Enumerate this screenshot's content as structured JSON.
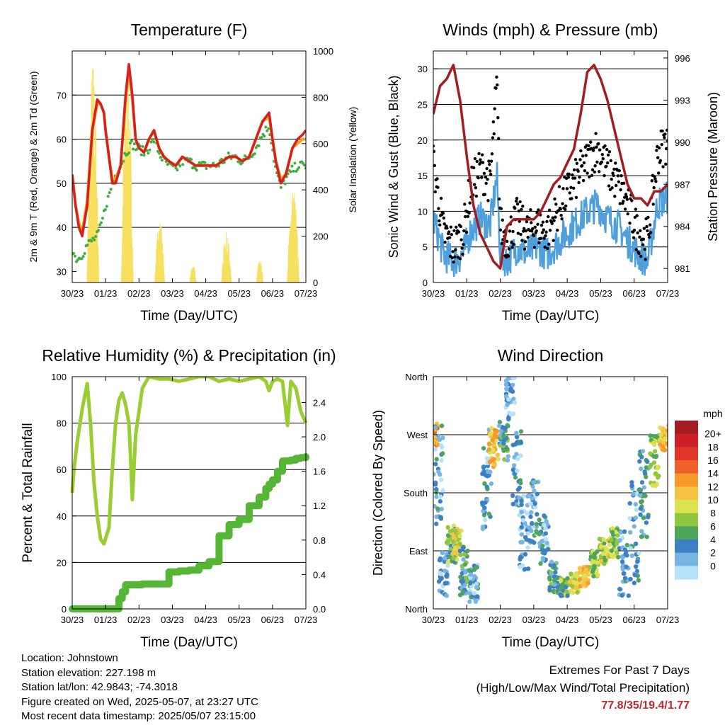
{
  "colors": {
    "red": "#d62020",
    "orange": "#f4a020",
    "green": "#3fae3f",
    "yellow": "#f7e060",
    "blue": "#4f9fdc",
    "black": "#000000",
    "maroon": "#a11d21",
    "rh": "#9acd32",
    "precip": "#55b535",
    "grid": "#000000"
  },
  "x_ticks": [
    "30/23",
    "01/23",
    "02/23",
    "03/23",
    "04/23",
    "05/23",
    "06/23",
    "07/23"
  ],
  "xlabel": "Time (Day/UTC)",
  "chart_data": [
    {
      "type": "line",
      "title": "Temperature (F)",
      "xlabel": "Time (Day/UTC)",
      "ylabel": "2m & 9m T (Red, Orange) & 2m Td (Green)",
      "y2label": "Solar Insolation (Yellow)",
      "ylim": [
        27.5,
        80
      ],
      "y_ticks": [
        30,
        40,
        50,
        60,
        70
      ],
      "y2lim": [
        0,
        1000
      ],
      "y2_ticks": [
        0,
        200,
        400,
        600,
        800,
        1000
      ],
      "x": [
        0,
        0.1,
        0.2,
        0.3,
        0.45,
        0.6,
        0.75,
        0.85,
        0.95,
        1.0,
        1.1,
        1.2,
        1.3,
        1.45,
        1.6,
        1.7,
        1.8,
        1.9,
        2.0,
        2.15,
        2.3,
        2.45,
        2.6,
        2.75,
        2.9,
        3.1,
        3.3,
        3.5,
        3.7,
        3.9,
        4.1,
        4.3,
        4.5,
        4.7,
        4.9,
        5.1,
        5.3,
        5.5,
        5.7,
        5.9,
        6.0,
        6.1,
        6.25,
        6.4,
        6.5,
        6.6,
        6.75,
        6.9,
        7.0
      ],
      "series": [
        {
          "name": "2m T",
          "values": [
            52,
            45,
            40,
            38,
            45,
            62,
            69,
            68,
            66,
            62,
            56,
            50,
            50,
            54,
            70,
            77,
            70,
            60,
            58,
            57,
            60,
            62,
            58,
            56,
            55,
            54,
            56,
            55,
            54,
            54,
            54,
            54,
            55,
            56,
            56,
            55,
            56,
            60,
            64,
            66,
            60,
            55,
            50,
            52,
            55,
            58,
            60,
            61,
            62
          ]
        },
        {
          "name": "9m T",
          "values": [
            52,
            45,
            41,
            39,
            46,
            62,
            68,
            68,
            66,
            62,
            56,
            51,
            51,
            54,
            69,
            76,
            69,
            60,
            58,
            57,
            60,
            62,
            58,
            56,
            55,
            54,
            56,
            55,
            54,
            54,
            54,
            54,
            55,
            56,
            56,
            55,
            56,
            60,
            64,
            65,
            60,
            55,
            51,
            52,
            55,
            58,
            59,
            60,
            60
          ]
        },
        {
          "name": "2m Td",
          "values": [
            35,
            33,
            33,
            34,
            36,
            37,
            38,
            40,
            43,
            45,
            47,
            50,
            52,
            54,
            57,
            58,
            59,
            58,
            58,
            57,
            58,
            60,
            57,
            55,
            54,
            53,
            55,
            55,
            54,
            54,
            54,
            54,
            55,
            56,
            56,
            55,
            56,
            58,
            61,
            63,
            58,
            53,
            49,
            51,
            52,
            53,
            54,
            54,
            54
          ]
        }
      ],
      "solar": [
        {
          "day": 0.62,
          "peak": 980,
          "width": 0.36
        },
        {
          "day": 1.65,
          "peak": 960,
          "width": 0.36
        },
        {
          "day": 2.62,
          "peak": 270,
          "width": 0.3
        },
        {
          "day": 3.62,
          "peak": 80,
          "width": 0.2
        },
        {
          "day": 4.62,
          "peak": 220,
          "width": 0.3
        },
        {
          "day": 5.62,
          "peak": 100,
          "width": 0.2
        },
        {
          "day": 6.62,
          "peak": 420,
          "width": 0.36
        }
      ]
    },
    {
      "type": "scatter",
      "title": "Winds (mph) & Pressure (mb)",
      "xlabel": "Time (Day/UTC)",
      "ylabel": "Sonic Wind & Gust (Blue, Black)",
      "y2label": "Station Pressure (Maroon)",
      "ylim": [
        0,
        32.5
      ],
      "y_ticks": [
        0,
        5,
        10,
        15,
        20,
        25,
        30
      ],
      "y2lim": [
        980,
        996.5
      ],
      "y2_ticks": [
        981,
        984,
        987,
        990,
        993,
        996
      ],
      "wind_x": [
        0,
        0.3,
        0.6,
        0.9,
        1.1,
        1.4,
        1.7,
        1.9,
        2.0,
        2.2,
        2.5,
        2.8,
        3.1,
        3.4,
        3.8,
        4.2,
        4.6,
        4.9,
        5.2,
        5.5,
        5.8,
        6.1,
        6.4,
        6.7,
        7.0
      ],
      "wind": [
        9,
        4,
        3,
        4,
        7,
        9,
        8,
        15,
        4,
        3,
        5,
        4,
        5,
        4,
        6,
        8,
        10,
        11,
        9,
        8,
        6,
        4,
        3,
        11,
        12
      ],
      "gust": [
        17,
        7,
        5,
        7,
        13,
        16,
        14,
        28,
        8,
        6,
        9,
        7,
        8,
        7,
        11,
        14,
        17,
        19,
        16,
        14,
        11,
        7,
        6,
        18,
        20
      ],
      "pressure_x": [
        0,
        0.2,
        0.4,
        0.6,
        0.8,
        1.0,
        1.2,
        1.4,
        1.6,
        1.8,
        2.0,
        2.2,
        2.4,
        2.6,
        2.8,
        3.0,
        3.2,
        3.4,
        3.6,
        3.8,
        4.0,
        4.2,
        4.4,
        4.6,
        4.8,
        5.0,
        5.2,
        5.4,
        5.6,
        5.8,
        6.0,
        6.2,
        6.4,
        6.6,
        6.8,
        7.0
      ],
      "pressure": [
        992,
        994,
        994.5,
        995.5,
        993,
        989,
        985.5,
        983.5,
        982.5,
        981.5,
        981,
        984,
        984.5,
        984.5,
        984.5,
        984.5,
        985,
        986,
        987,
        987.5,
        988.5,
        989.5,
        992,
        995,
        995.5,
        994.5,
        993,
        991,
        989,
        987,
        986,
        986,
        985.5,
        986.5,
        986.5,
        987
      ]
    },
    {
      "type": "line",
      "title": "Relative Humidity (%) & Precipitation (in)",
      "xlabel": "Time (Day/UTC)",
      "ylabel": "Percent & Total Rainfall",
      "ylim": [
        0,
        100
      ],
      "y_ticks": [
        0,
        20,
        40,
        60,
        80,
        100
      ],
      "y2lim": [
        0,
        2.7
      ],
      "y2_ticks": [
        0.0,
        0.4,
        0.8,
        1.2,
        1.6,
        2.0,
        2.4
      ],
      "x": [
        0,
        0.05,
        0.15,
        0.3,
        0.45,
        0.55,
        0.65,
        0.75,
        0.85,
        0.95,
        1.1,
        1.2,
        1.3,
        1.4,
        1.5,
        1.6,
        1.7,
        1.75,
        1.8,
        1.9,
        2.1,
        2.3,
        2.6,
        2.9,
        3.2,
        3.5,
        3.8,
        4.1,
        4.4,
        4.7,
        5.0,
        5.3,
        5.6,
        5.8,
        5.9,
        6.0,
        6.15,
        6.3,
        6.45,
        6.55,
        6.7,
        6.85,
        7.0
      ],
      "series": [
        {
          "name": "RH",
          "values": [
            50,
            60,
            72,
            86,
            97,
            80,
            55,
            40,
            30,
            28,
            35,
            60,
            80,
            90,
            93,
            88,
            80,
            65,
            47,
            75,
            95,
            100,
            99,
            99,
            98,
            99,
            100,
            100,
            98,
            99,
            98,
            99,
            100,
            98,
            94,
            98,
            99,
            98,
            79,
            98,
            95,
            85,
            80
          ]
        },
        {
          "name": "Precip",
          "values": [
            0,
            0,
            0,
            0,
            0,
            0,
            0,
            0,
            0,
            0,
            0,
            0,
            0,
            0.12,
            0.2,
            0.28,
            0.28,
            0.28,
            0.28,
            0.28,
            0.29,
            0.29,
            0.29,
            0.43,
            0.44,
            0.45,
            0.5,
            0.55,
            0.85,
            0.98,
            1.04,
            1.2,
            1.3,
            1.4,
            1.45,
            1.5,
            1.6,
            1.72,
            1.72,
            1.73,
            1.75,
            1.76,
            1.77
          ]
        }
      ]
    },
    {
      "type": "scatter",
      "title": "Wind Direction",
      "xlabel": "Time (Day/UTC)",
      "ylabel": "Direction (Colored By Speed)",
      "y_ticks": [
        "North",
        "East",
        "South",
        "West",
        "North"
      ],
      "ylim": [
        0,
        360
      ],
      "legend_title": "mph",
      "legend_labels": [
        "20+",
        "18",
        "16",
        "14",
        "12",
        "10",
        "8",
        "6",
        "4",
        "2",
        "0"
      ],
      "legend_colors": [
        "#a11d21",
        "#cc2027",
        "#e0362a",
        "#f0612a",
        "#f79a2e",
        "#f6c243",
        "#dde350",
        "#8fc743",
        "#4fa55a",
        "#3d80c4",
        "#79b5e3",
        "#b7e1f7"
      ],
      "clusters": [
        {
          "day": 0.0,
          "dir": 270,
          "spread": 20,
          "speed": 14
        },
        {
          "day": 0.15,
          "dir": 210,
          "spread": 80,
          "speed": 3
        },
        {
          "day": 0.3,
          "dir": 50,
          "spread": 40,
          "speed": 2
        },
        {
          "day": 0.55,
          "dir": 100,
          "spread": 30,
          "speed": 7
        },
        {
          "day": 0.7,
          "dir": 100,
          "spread": 25,
          "speed": 10
        },
        {
          "day": 0.9,
          "dir": 60,
          "spread": 40,
          "speed": 5
        },
        {
          "day": 1.2,
          "dir": 40,
          "spread": 30,
          "speed": 3
        },
        {
          "day": 1.6,
          "dir": 200,
          "spread": 80,
          "speed": 3
        },
        {
          "day": 1.8,
          "dir": 250,
          "spread": 30,
          "speed": 12
        },
        {
          "day": 2.1,
          "dir": 260,
          "spread": 30,
          "speed": 5
        },
        {
          "day": 2.3,
          "dir": 330,
          "spread": 40,
          "speed": 2
        },
        {
          "day": 2.5,
          "dir": 220,
          "spread": 60,
          "speed": 3
        },
        {
          "day": 2.7,
          "dir": 120,
          "spread": 60,
          "speed": 2
        },
        {
          "day": 3.0,
          "dir": 150,
          "spread": 50,
          "speed": 3
        },
        {
          "day": 3.3,
          "dir": 110,
          "spread": 40,
          "speed": 3
        },
        {
          "day": 3.6,
          "dir": 50,
          "spread": 25,
          "speed": 5
        },
        {
          "day": 3.9,
          "dir": 35,
          "spread": 15,
          "speed": 7
        },
        {
          "day": 4.2,
          "dir": 40,
          "spread": 15,
          "speed": 10
        },
        {
          "day": 4.5,
          "dir": 50,
          "spread": 15,
          "speed": 12
        },
        {
          "day": 4.8,
          "dir": 70,
          "spread": 20,
          "speed": 8
        },
        {
          "day": 5.1,
          "dir": 90,
          "spread": 20,
          "speed": 9
        },
        {
          "day": 5.4,
          "dir": 100,
          "spread": 25,
          "speed": 8
        },
        {
          "day": 5.7,
          "dir": 70,
          "spread": 50,
          "speed": 3
        },
        {
          "day": 6.0,
          "dir": 120,
          "spread": 80,
          "speed": 3
        },
        {
          "day": 6.3,
          "dir": 180,
          "spread": 70,
          "speed": 4
        },
        {
          "day": 6.6,
          "dir": 230,
          "spread": 40,
          "speed": 8
        },
        {
          "day": 6.9,
          "dir": 265,
          "spread": 20,
          "speed": 12
        }
      ]
    }
  ],
  "info": {
    "location": "Location: Johnstown",
    "elevation": "Station elevation: 227.198 m",
    "latlon": "Station lat/lon: 42.9843; -74.3018",
    "created": "Figure created on Wed, 2025-05-07, at 23:27 UTC",
    "recent": "Most recent data timestamp: 2025/05/07 23:15:00"
  },
  "extremes": {
    "title": "Extremes For Past 7 Days",
    "subtitle": "(High/Low/Max Wind/Total Precipitation)",
    "values": "77.8/35/19.4/1.77"
  }
}
